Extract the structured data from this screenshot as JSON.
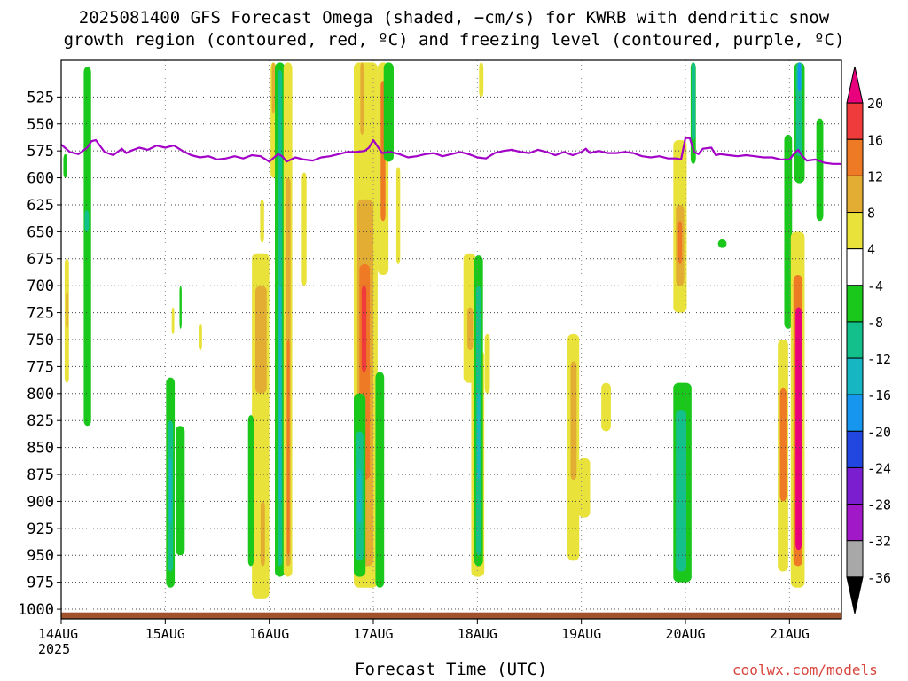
{
  "title_line1": "2025081400 GFS Forecast Omega (shaded, −cm/s) for KWRB with dendritic snow",
  "title_line2": "growth region (contoured, red, ºC) and freezing level (contoured, purple, ºC)",
  "credit": "coolwx.com/models",
  "chart_data": {
    "type": "heatmap",
    "title": "2025081400 GFS Forecast Omega (shaded, −cm/s) for KWRB with dendritic snow growth region (contoured, red, ºC) and freezing level (contoured, purple, ºC)",
    "xlabel": "Forecast Time (UTC)",
    "ylabel": "",
    "x_unit": "hours after 2025-08-14 00 UTC",
    "xlim": [
      0,
      180
    ],
    "x_ticks": [
      {
        "label": "14AUG",
        "label2": "2025",
        "value": 0
      },
      {
        "label": "15AUG",
        "value": 24
      },
      {
        "label": "16AUG",
        "value": 48
      },
      {
        "label": "17AUG",
        "value": 72
      },
      {
        "label": "18AUG",
        "value": 96
      },
      {
        "label": "19AUG",
        "value": 120
      },
      {
        "label": "20AUG",
        "value": 144
      },
      {
        "label": "21AUG",
        "value": 168
      }
    ],
    "y_unit": "hPa",
    "ylim": [
      1009,
      491
    ],
    "y_ticks": [
      525,
      550,
      575,
      600,
      625,
      650,
      675,
      700,
      725,
      750,
      775,
      800,
      825,
      850,
      875,
      900,
      925,
      950,
      975,
      1000
    ],
    "grid": "dotted",
    "colorbar": {
      "placement": "right",
      "labels": [
        20,
        16,
        12,
        8,
        4,
        -4,
        -8,
        -12,
        -16,
        -20,
        -24,
        -28,
        -32,
        -36
      ],
      "bins": [
        {
          "range": "> 20",
          "color": "#e8007c"
        },
        {
          "range": "16 to 20",
          "color": "#ef3b3b"
        },
        {
          "range": "12 to 16",
          "color": "#ef7a26"
        },
        {
          "range": "8 to 12",
          "color": "#e3ac33"
        },
        {
          "range": "4 to 8",
          "color": "#e8e23a"
        },
        {
          "range": "-4 to 4",
          "color": "#ffffff"
        },
        {
          "range": "-8 to -4",
          "color": "#19c81a"
        },
        {
          "range": "-12 to -8",
          "color": "#13c08c"
        },
        {
          "range": "-16 to -12",
          "color": "#16b7c2"
        },
        {
          "range": "-20 to -16",
          "color": "#1796f0"
        },
        {
          "range": "-24 to -20",
          "color": "#2247e0"
        },
        {
          "range": "-28 to -24",
          "color": "#7a1ed0"
        },
        {
          "range": "-32 to -28",
          "color": "#a018c8"
        },
        {
          "range": "-36 to -32",
          "color": "#a8a8a8"
        },
        {
          "range": "< -36",
          "color": "#000000"
        }
      ]
    },
    "freezing_level_color": "#a300c8",
    "terrain_color": "#a0522d",
    "freezing_level": {
      "x": [
        0,
        2,
        4,
        6,
        7,
        8,
        10,
        12,
        14,
        15,
        16,
        18,
        20,
        22,
        24,
        26,
        28,
        30,
        32,
        34,
        36,
        38,
        40,
        42,
        44,
        46,
        48,
        50,
        51,
        52,
        53,
        54,
        56,
        58,
        60,
        62,
        64,
        66,
        68,
        70,
        71,
        72,
        73,
        74,
        76,
        78,
        80,
        82,
        84,
        86,
        88,
        90,
        92,
        94,
        96,
        98,
        100,
        102,
        104,
        106,
        108,
        110,
        112,
        114,
        116,
        118,
        120,
        121,
        122,
        124,
        126,
        128,
        130,
        132,
        134,
        136,
        138,
        140,
        142,
        143,
        144,
        145,
        146,
        147,
        148,
        150,
        151,
        152,
        154,
        156,
        158,
        160,
        162,
        164,
        166,
        168,
        169,
        170,
        171,
        172,
        174,
        176,
        178,
        180
      ],
      "y": [
        569,
        576,
        578,
        572,
        566,
        565,
        576,
        579,
        573,
        577,
        575,
        572,
        574,
        570,
        572,
        570,
        575,
        579,
        581,
        580,
        583,
        582,
        580,
        582,
        579,
        580,
        585,
        578,
        580,
        585,
        583,
        581,
        583,
        584,
        581,
        580,
        578,
        576,
        576,
        575,
        572,
        565,
        571,
        577,
        576,
        578,
        581,
        580,
        578,
        577,
        580,
        578,
        576,
        578,
        581,
        582,
        577,
        575,
        574,
        576,
        577,
        574,
        576,
        579,
        576,
        579,
        576,
        573,
        577,
        575,
        577,
        577,
        576,
        577,
        580,
        581,
        580,
        582,
        582,
        583,
        563,
        563,
        576,
        578,
        573,
        572,
        579,
        578,
        579,
        580,
        579,
        580,
        581,
        581,
        583,
        583,
        578,
        574,
        580,
        584,
        583,
        586,
        587,
        587
      ]
    },
    "shaded_cells": [
      {
        "x": [
          0.5,
          1.4
        ],
        "p": [
          578,
          600
        ],
        "color": "#19c81a"
      },
      {
        "x": [
          0.8,
          1.8
        ],
        "p": [
          675,
          790
        ],
        "color": "#e8e23a"
      },
      {
        "x": [
          1.1,
          1.6
        ],
        "p": [
          705,
          740
        ],
        "color": "#e3ac33"
      },
      {
        "x": [
          5.2,
          6.9
        ],
        "p": [
          497,
          830
        ],
        "color": "#19c81a"
      },
      {
        "x": [
          5.4,
          6.4
        ],
        "p": [
          630,
          650
        ],
        "color": "#13c08c"
      },
      {
        "x": [
          24.2,
          26.2
        ],
        "p": [
          785,
          980
        ],
        "color": "#19c81a"
      },
      {
        "x": [
          24.6,
          25.8
        ],
        "p": [
          825,
          965
        ],
        "color": "#13c08c"
      },
      {
        "x": [
          24.9,
          25.5
        ],
        "p": [
          860,
          920
        ],
        "color": "#16b7c2"
      },
      {
        "x": [
          26.4,
          28.5
        ],
        "p": [
          830,
          950
        ],
        "color": "#19c81a"
      },
      {
        "x": [
          25.5,
          26.1
        ],
        "p": [
          720,
          745
        ],
        "color": "#e8e23a"
      },
      {
        "x": [
          27.3,
          27.8
        ],
        "p": [
          700,
          740
        ],
        "color": "#19c81a"
      },
      {
        "x": [
          31.7,
          32.5
        ],
        "p": [
          735,
          760
        ],
        "color": "#e8e23a"
      },
      {
        "x": [
          44.0,
          48.0
        ],
        "p": [
          670,
          990
        ],
        "color": "#e8e23a"
      },
      {
        "x": [
          44.8,
          47.4
        ],
        "p": [
          700,
          800
        ],
        "color": "#e3ac33"
      },
      {
        "x": [
          46.0,
          47.0
        ],
        "p": [
          900,
          960
        ],
        "color": "#e3ac33"
      },
      {
        "x": [
          45.9,
          46.8
        ],
        "p": [
          620,
          660
        ],
        "color": "#e8e23a"
      },
      {
        "x": [
          43.1,
          44.4
        ],
        "p": [
          820,
          960
        ],
        "color": "#19c81a"
      },
      {
        "x": [
          48.3,
          49.6
        ],
        "p": [
          493,
          600
        ],
        "color": "#e8e23a"
      },
      {
        "x": [
          48.6,
          49.3
        ],
        "p": [
          493,
          540
        ],
        "color": "#e3ac33"
      },
      {
        "x": [
          49.3,
          51.6
        ],
        "p": [
          493,
          970
        ],
        "color": "#19c81a"
      },
      {
        "x": [
          49.9,
          51.0
        ],
        "p": [
          500,
          960
        ],
        "color": "#13c08c"
      },
      {
        "x": [
          50.2,
          50.8
        ],
        "p": [
          700,
          900
        ],
        "color": "#16b7c2"
      },
      {
        "x": [
          51.3,
          53.3
        ],
        "p": [
          493,
          970
        ],
        "color": "#e8e23a"
      },
      {
        "x": [
          51.8,
          52.9
        ],
        "p": [
          600,
          960
        ],
        "color": "#e3ac33"
      },
      {
        "x": [
          52.1,
          52.7
        ],
        "p": [
          750,
          950
        ],
        "color": "#ef7a26"
      },
      {
        "x": [
          55.5,
          56.6
        ],
        "p": [
          595,
          700
        ],
        "color": "#e8e23a"
      },
      {
        "x": [
          67.5,
          73.0
        ],
        "p": [
          493,
          980
        ],
        "color": "#e8e23a"
      },
      {
        "x": [
          68.3,
          72.0
        ],
        "p": [
          620,
          960
        ],
        "color": "#e3ac33"
      },
      {
        "x": [
          68.8,
          71.2
        ],
        "p": [
          680,
          880
        ],
        "color": "#ef7a26"
      },
      {
        "x": [
          69.3,
          70.4
        ],
        "p": [
          700,
          780
        ],
        "color": "#ef3b3b"
      },
      {
        "x": [
          69.0,
          69.8
        ],
        "p": [
          493,
          560
        ],
        "color": "#e3ac33"
      },
      {
        "x": [
          67.5,
          70.2
        ],
        "p": [
          800,
          970
        ],
        "color": "#19c81a"
      },
      {
        "x": [
          68.0,
          69.7
        ],
        "p": [
          835,
          955
        ],
        "color": "#13c08c"
      },
      {
        "x": [
          68.4,
          69.3
        ],
        "p": [
          870,
          920
        ],
        "color": "#16b7c2"
      },
      {
        "x": [
          72.5,
          74.5
        ],
        "p": [
          780,
          980
        ],
        "color": "#19c81a"
      },
      {
        "x": [
          73.0,
          75.5
        ],
        "p": [
          493,
          690
        ],
        "color": "#e8e23a"
      },
      {
        "x": [
          73.7,
          74.8
        ],
        "p": [
          510,
          640
        ],
        "color": "#ef7a26"
      },
      {
        "x": [
          74.4,
          76.7
        ],
        "p": [
          493,
          585
        ],
        "color": "#19c81a"
      },
      {
        "x": [
          77.3,
          78.2
        ],
        "p": [
          590,
          680
        ],
        "color": "#e8e23a"
      },
      {
        "x": [
          92.8,
          95.6
        ],
        "p": [
          670,
          790
        ],
        "color": "#e8e23a"
      },
      {
        "x": [
          93.7,
          95.0
        ],
        "p": [
          720,
          760
        ],
        "color": "#e3ac33"
      },
      {
        "x": [
          94.6,
          97.6
        ],
        "p": [
          760,
          970
        ],
        "color": "#e8e23a"
      },
      {
        "x": [
          95.3,
          97.3
        ],
        "p": [
          672,
          960
        ],
        "color": "#19c81a"
      },
      {
        "x": [
          95.7,
          96.8
        ],
        "p": [
          700,
          950
        ],
        "color": "#13c08c"
      },
      {
        "x": [
          96.0,
          96.6
        ],
        "p": [
          800,
          880
        ],
        "color": "#16b7c2"
      },
      {
        "x": [
          97.7,
          98.9
        ],
        "p": [
          745,
          800
        ],
        "color": "#e8e23a"
      },
      {
        "x": [
          96.4,
          97.4
        ],
        "p": [
          493,
          525
        ],
        "color": "#e8e23a"
      },
      {
        "x": [
          116.8,
          119.5
        ],
        "p": [
          745,
          955
        ],
        "color": "#e8e23a"
      },
      {
        "x": [
          117.5,
          118.9
        ],
        "p": [
          770,
          880
        ],
        "color": "#e3ac33"
      },
      {
        "x": [
          119.3,
          122.0
        ],
        "p": [
          860,
          915
        ],
        "color": "#e8e23a"
      },
      {
        "x": [
          124.6,
          126.8
        ],
        "p": [
          790,
          835
        ],
        "color": "#e8e23a"
      },
      {
        "x": [
          141.2,
          144.3
        ],
        "p": [
          565,
          725
        ],
        "color": "#e8e23a"
      },
      {
        "x": [
          141.8,
          143.7
        ],
        "p": [
          625,
          700
        ],
        "color": "#e3ac33"
      },
      {
        "x": [
          142.3,
          143.2
        ],
        "p": [
          640,
          680
        ],
        "color": "#ef7a26"
      },
      {
        "x": [
          141.2,
          145.4
        ],
        "p": [
          790,
          975
        ],
        "color": "#19c81a"
      },
      {
        "x": [
          141.8,
          144.2
        ],
        "p": [
          815,
          965
        ],
        "color": "#13c08c"
      },
      {
        "x": [
          145.2,
          146.4
        ],
        "p": [
          493,
          587
        ],
        "color": "#19c81a"
      },
      {
        "x": [
          145.4,
          146.3
        ],
        "p": [
          493,
          565
        ],
        "color": "#13c08c"
      },
      {
        "x": [
          151.5,
          153.5
        ],
        "p": [
          657,
          665
        ],
        "color": "#19c81a"
      },
      {
        "x": [
          165.3,
          167.7
        ],
        "p": [
          750,
          965
        ],
        "color": "#e8e23a"
      },
      {
        "x": [
          165.8,
          167.3
        ],
        "p": [
          795,
          900
        ],
        "color": "#ef7a26"
      },
      {
        "x": [
          166.8,
          168.6
        ],
        "p": [
          560,
          740
        ],
        "color": "#19c81a"
      },
      {
        "x": [
          168.3,
          171.5
        ],
        "p": [
          650,
          980
        ],
        "color": "#e8e23a"
      },
      {
        "x": [
          168.9,
          171.0
        ],
        "p": [
          690,
          960
        ],
        "color": "#ef7a26"
      },
      {
        "x": [
          169.4,
          170.8
        ],
        "p": [
          720,
          945
        ],
        "color": "#e8007c"
      },
      {
        "x": [
          169.1,
          171.5
        ],
        "p": [
          493,
          605
        ],
        "color": "#19c81a"
      },
      {
        "x": [
          169.5,
          171.0
        ],
        "p": [
          493,
          580
        ],
        "color": "#13c08c"
      },
      {
        "x": [
          169.9,
          170.7
        ],
        "p": [
          493,
          520
        ],
        "color": "#1796f0"
      },
      {
        "x": [
          174.2,
          175.8
        ],
        "p": [
          545,
          640
        ],
        "color": "#19c81a"
      }
    ]
  }
}
